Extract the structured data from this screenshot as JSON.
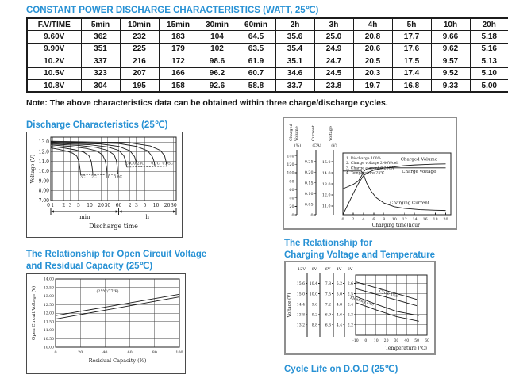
{
  "page": {
    "title": "CONSTANT POWER DISCHARGE CHARACTERISTICS (WATT, 25℃)",
    "note": "Note: The above characteristics data can be obtained within three charge/discharge cycles."
  },
  "colors": {
    "heading_blue": "#2791d4",
    "line": "#1a1a1a"
  },
  "table": {
    "headers": [
      "F.V/TIME",
      "5min",
      "10min",
      "15min",
      "30min",
      "60min",
      "2h",
      "3h",
      "4h",
      "5h",
      "10h",
      "20h"
    ],
    "rows": [
      [
        "9.60V",
        "362",
        "232",
        "183",
        "104",
        "64.5",
        "35.6",
        "25.0",
        "20.8",
        "17.7",
        "9.66",
        "5.18"
      ],
      [
        "9.90V",
        "351",
        "225",
        "179",
        "102",
        "63.5",
        "35.4",
        "24.9",
        "20.6",
        "17.6",
        "9.62",
        "5.16"
      ],
      [
        "10.2V",
        "337",
        "216",
        "172",
        "98.6",
        "61.9",
        "35.1",
        "24.7",
        "20.5",
        "17.5",
        "9.57",
        "5.13"
      ],
      [
        "10.5V",
        "323",
        "207",
        "166",
        "96.2",
        "60.7",
        "34.6",
        "24.5",
        "20.3",
        "17.4",
        "9.52",
        "5.10"
      ],
      [
        "10.8V",
        "304",
        "195",
        "158",
        "92.6",
        "58.8",
        "33.7",
        "23.8",
        "19.7",
        "16.8",
        "9.33",
        "5.00"
      ]
    ]
  },
  "headings": {
    "discharge": "Discharge Characteristics (25℃)",
    "ocv_line1": "The Relationship for Open Circuit Voltage",
    "ocv_line2": "and Residual Capacity (25℃)",
    "ct_line1": "The Relationship for",
    "ct_line2": "Charging Voltage and Temperature",
    "cycle_life": "Cycle Life on D.O.D (25℃)"
  },
  "chart_data": [
    {
      "id": "discharge",
      "type": "line",
      "title": "Discharge Characteristics (25℃)",
      "xlabel": "Discharge time",
      "ylabel": "Voltage (V)",
      "x_scale": "log-minutes",
      "x_group_labels": [
        "min",
        "h"
      ],
      "origin_label": "0",
      "x_ticks_min": [
        [
          1,
          "1"
        ],
        [
          2,
          "2"
        ],
        [
          3,
          "3"
        ],
        [
          5,
          "5"
        ],
        [
          10,
          "10"
        ],
        [
          20,
          "20"
        ],
        [
          30,
          "30"
        ],
        [
          60,
          "60"
        ]
      ],
      "x_ticks_h": [
        [
          120,
          "2"
        ],
        [
          180,
          "3"
        ],
        [
          300,
          "5"
        ],
        [
          600,
          "10"
        ],
        [
          1200,
          "20"
        ],
        [
          1800,
          "30"
        ]
      ],
      "y_ticks": [
        [
          13,
          "13.0"
        ],
        [
          12,
          "12.0"
        ],
        [
          11,
          "11.0"
        ],
        [
          10,
          "10.0"
        ],
        [
          9,
          "9.00"
        ],
        [
          8,
          "8.00"
        ],
        [
          7,
          "7.00"
        ]
      ],
      "ylim": [
        7,
        13.5
      ],
      "series": [
        {
          "name": "3C",
          "points": [
            [
              0.9,
              12.4
            ],
            [
              1.5,
              12.25
            ],
            [
              2.5,
              12.05
            ],
            [
              3.5,
              11.85
            ],
            [
              4.5,
              11.55
            ],
            [
              5.1,
              11.0
            ],
            [
              5.5,
              10.2
            ],
            [
              5.7,
              9.62
            ]
          ]
        },
        {
          "name": "2C",
          "points": [
            [
              0.9,
              12.55
            ],
            [
              2,
              12.4
            ],
            [
              4,
              12.2
            ],
            [
              7,
              11.95
            ],
            [
              9.5,
              11.6
            ],
            [
              11,
              11.0
            ],
            [
              11.8,
              10.2
            ],
            [
              12.2,
              9.64
            ]
          ]
        },
        {
          "name": "1C",
          "points": [
            [
              0.9,
              12.7
            ],
            [
              3,
              12.55
            ],
            [
              8,
              12.35
            ],
            [
              15,
              12.1
            ],
            [
              22,
              11.7
            ],
            [
              26,
              11.1
            ],
            [
              28.5,
              10.3
            ],
            [
              29.5,
              9.66
            ]
          ]
        },
        {
          "name": "0.6C",
          "points": [
            [
              0.9,
              12.8
            ],
            [
              5,
              12.65
            ],
            [
              15,
              12.45
            ],
            [
              30,
              12.15
            ],
            [
              45,
              11.7
            ],
            [
              52,
              11.1
            ],
            [
              55.5,
              10.3
            ],
            [
              57,
              9.68
            ]
          ]
        },
        {
          "name": "0.4C",
          "points": [
            [
              0.9,
              12.88
            ],
            [
              10,
              12.72
            ],
            [
              30,
              12.5
            ],
            [
              60,
              12.15
            ],
            [
              82,
              11.6
            ],
            [
              93,
              11.0
            ],
            [
              99,
              10.42
            ]
          ]
        },
        {
          "name": "0.25C",
          "points": [
            [
              0.9,
              12.95
            ],
            [
              20,
              12.8
            ],
            [
              60,
              12.55
            ],
            [
              120,
              12.1
            ],
            [
              160,
              11.5
            ],
            [
              178,
              10.9
            ],
            [
              186,
              10.44
            ]
          ]
        },
        {
          "name": "0.1C",
          "points": [
            [
              0.9,
              13.02
            ],
            [
              60,
              12.85
            ],
            [
              180,
              12.55
            ],
            [
              360,
              12.1
            ],
            [
              480,
              11.5
            ],
            [
              540,
              10.95
            ],
            [
              565,
              10.47
            ]
          ]
        },
        {
          "name": "0.05C",
          "points": [
            [
              0.9,
              13.08
            ],
            [
              120,
              12.92
            ],
            [
              420,
              12.6
            ],
            [
              780,
              12.15
            ],
            [
              1020,
              11.6
            ],
            [
              1120,
              11.0
            ],
            [
              1180,
              10.5
            ]
          ]
        }
      ],
      "dotted": [
        [
          [
            5.7,
            9.62
          ],
          [
            57,
            9.68
          ]
        ],
        [
          [
            99,
            10.42
          ],
          [
            1180,
            10.5
          ]
        ]
      ],
      "curve_labels": [
        {
          "text": "3C",
          "x": 6.5,
          "y": 9.3
        },
        {
          "text": "2C",
          "x": 13,
          "y": 9.3
        },
        {
          "text": "1C",
          "x": 31,
          "y": 9.3
        },
        {
          "text": "0.6C",
          "x": 57,
          "y": 9.3
        },
        {
          "text": "0.4C",
          "x": 112,
          "y": 10.68
        },
        {
          "text": "0.25C",
          "x": 210,
          "y": 10.68
        },
        {
          "text": "0.1C",
          "x": 580,
          "y": 10.68
        },
        {
          "text": "0.05C",
          "x": 1250,
          "y": 10.68
        }
      ]
    },
    {
      "id": "charging",
      "type": "line",
      "xlabel": "Charging time(hour)",
      "xlim": [
        0,
        21
      ],
      "x_ticks": [
        [
          0,
          "0"
        ],
        [
          2,
          "2"
        ],
        [
          4,
          "4"
        ],
        [
          6,
          "6"
        ],
        [
          8,
          "8"
        ],
        [
          10,
          "10"
        ],
        [
          12,
          "12"
        ],
        [
          14,
          "14"
        ],
        [
          16,
          "16"
        ],
        [
          18,
          "18"
        ],
        [
          20,
          "20"
        ]
      ],
      "notes": [
        "1. Discharge 100%",
        "2. Charge voltage 2.40V/cell",
        "3. Charge current 0.25CA",
        "4. Temperature 25℃"
      ],
      "axes": [
        {
          "id": "percent",
          "title": [
            "Charged",
            "Volume"
          ],
          "unit": "(%)",
          "range": [
            0,
            147
          ],
          "ticks": [
            [
              0,
              "0"
            ],
            [
              20,
              "20"
            ],
            [
              40,
              "40"
            ],
            [
              60,
              "60"
            ],
            [
              80,
              "80"
            ],
            [
              100,
              "100"
            ],
            [
              120,
              "120"
            ],
            [
              140,
              "140"
            ]
          ]
        },
        {
          "id": "current",
          "title": [
            "Current"
          ],
          "unit": "(CA)",
          "range": [
            0,
            0.29
          ],
          "ticks": [
            [
              0,
              "0"
            ],
            [
              0.05,
              "0.05"
            ],
            [
              0.1,
              "0.10"
            ],
            [
              0.15,
              "0.15"
            ],
            [
              0.2,
              "0.20"
            ],
            [
              0.25,
              "0.25"
            ]
          ]
        },
        {
          "id": "voltage",
          "title": [
            "Voltage"
          ],
          "unit": "(V)",
          "range": [
            10.2,
            15.8
          ],
          "ticks": [
            [
              11,
              "11.0"
            ],
            [
              12,
              "12.0"
            ],
            [
              13,
              "13.0"
            ],
            [
              14,
              "14.0"
            ],
            [
              15,
              "15.0"
            ]
          ]
        }
      ],
      "series": [
        {
          "name": "Charged Volume",
          "axis": "percent",
          "label_at": [
            14.8,
            129
          ],
          "points": [
            [
              0,
              0
            ],
            [
              1,
              25
            ],
            [
              2,
              50
            ],
            [
              3,
              74
            ],
            [
              4,
              93
            ],
            [
              5,
              101
            ],
            [
              6,
              106
            ],
            [
              8,
              111
            ],
            [
              10,
              114
            ],
            [
              12,
              117
            ],
            [
              14,
              118.5
            ],
            [
              16,
              119.5
            ],
            [
              18,
              120.5
            ],
            [
              20,
              121
            ]
          ]
        },
        {
          "name": "Charge Voltage",
          "axis": "voltage",
          "label_at": [
            14.8,
            14.0
          ],
          "points": [
            [
              0,
              12.55
            ],
            [
              1,
              12.75
            ],
            [
              2,
              12.95
            ],
            [
              3,
              13.25
            ],
            [
              3.6,
              13.7
            ],
            [
              4.1,
              14.15
            ],
            [
              4.6,
              14.35
            ],
            [
              5.5,
              14.42
            ],
            [
              8,
              14.45
            ],
            [
              20,
              14.45
            ]
          ]
        },
        {
          "name": "Charging Current",
          "axis": "current",
          "label_at": [
            13,
            0.05
          ],
          "points": [
            [
              0,
              0.205
            ],
            [
              3.6,
              0.205
            ],
            [
              4,
              0.19
            ],
            [
              4.6,
              0.15
            ],
            [
              5.5,
              0.11
            ],
            [
              6.5,
              0.08
            ],
            [
              8,
              0.055
            ],
            [
              10,
              0.038
            ],
            [
              12,
              0.03
            ],
            [
              15,
              0.024
            ],
            [
              18,
              0.021
            ],
            [
              20,
              0.02
            ]
          ]
        }
      ]
    },
    {
      "id": "ocv",
      "type": "line",
      "xlabel": "Residual Capacity (%)",
      "ylabel": "Open Circuit Voltage (V)",
      "xlim": [
        0,
        100
      ],
      "ylim": [
        10,
        14
      ],
      "x_ticks": [
        [
          0,
          "0"
        ],
        [
          20,
          "20"
        ],
        [
          40,
          "40"
        ],
        [
          60,
          "60"
        ],
        [
          80,
          "80"
        ],
        [
          100,
          "100"
        ]
      ],
      "y_ticks": [
        [
          14,
          "14.00"
        ],
        [
          13.5,
          "13.50"
        ],
        [
          13,
          "13.00"
        ],
        [
          12.5,
          "12.50"
        ],
        [
          12,
          "12.00"
        ],
        [
          11.5,
          "11.50"
        ],
        [
          11,
          "11.00"
        ],
        [
          10.5,
          "10.50"
        ],
        [
          10,
          "10.00"
        ]
      ],
      "annotation": {
        "text": "(25℃/77℉)",
        "x": 42,
        "y": 13.2
      },
      "series": [
        {
          "name": "upper",
          "points": [
            [
              0,
              11.85
            ],
            [
              100,
              13.1
            ]
          ]
        },
        {
          "name": "lower",
          "points": [
            [
              0,
              11.65
            ],
            [
              100,
              12.95
            ]
          ]
        }
      ]
    },
    {
      "id": "charge-temp",
      "type": "line",
      "xlabel": "Temperature (℃)",
      "ylabel": "Voltage (V)",
      "xlim": [
        -10,
        60
      ],
      "ylim": [
        2.1,
        2.68
      ],
      "x_ticks": [
        [
          -10,
          "-10"
        ],
        [
          0,
          "0"
        ],
        [
          10,
          "10"
        ],
        [
          20,
          "20"
        ],
        [
          30,
          "30"
        ],
        [
          40,
          "40"
        ],
        [
          50,
          "50"
        ],
        [
          60,
          "60"
        ]
      ],
      "row_values": [
        2.6,
        2.5,
        2.4,
        2.3,
        2.2
      ],
      "scales": [
        {
          "header": "12V",
          "labels": [
            "15.6",
            "15.0",
            "14.4",
            "13.8",
            "13.2"
          ]
        },
        {
          "header": "8V",
          "labels": [
            "10.4",
            "10.0",
            "9.6",
            "9.2",
            "8.8"
          ]
        },
        {
          "header": "6V",
          "labels": [
            "7.8",
            "7.5",
            "7.2",
            "6.9",
            "6.6"
          ]
        },
        {
          "header": "4V",
          "labels": [
            "5.2",
            "5.0",
            "4.8",
            "4.6",
            "4.4"
          ]
        },
        {
          "header": "2V",
          "labels": [
            "2.6",
            "2.5",
            "2.4",
            "2.3",
            "2.2"
          ]
        }
      ],
      "bands": [
        {
          "name": "Cycle Use",
          "label_at": {
            "x": 22,
            "v": 2.49,
            "angle": 16
          },
          "lines": [
            [
              [
                -10,
                2.615
              ],
              [
                50,
                2.445
              ]
            ],
            [
              [
                -10,
                2.55
              ],
              [
                50,
                2.385
              ]
            ]
          ]
        },
        {
          "name": "Floating Use",
          "label_at": {
            "x": -4,
            "v": 2.42,
            "angle": 17
          },
          "lines": [
            [
              [
                -10,
                2.475
              ],
              [
                10,
                2.4
              ],
              [
                30,
                2.33
              ],
              [
                52,
                2.29
              ]
            ],
            [
              [
                -10,
                2.415
              ],
              [
                10,
                2.345
              ],
              [
                30,
                2.28
              ],
              [
                52,
                2.235
              ]
            ]
          ]
        }
      ]
    }
  ]
}
